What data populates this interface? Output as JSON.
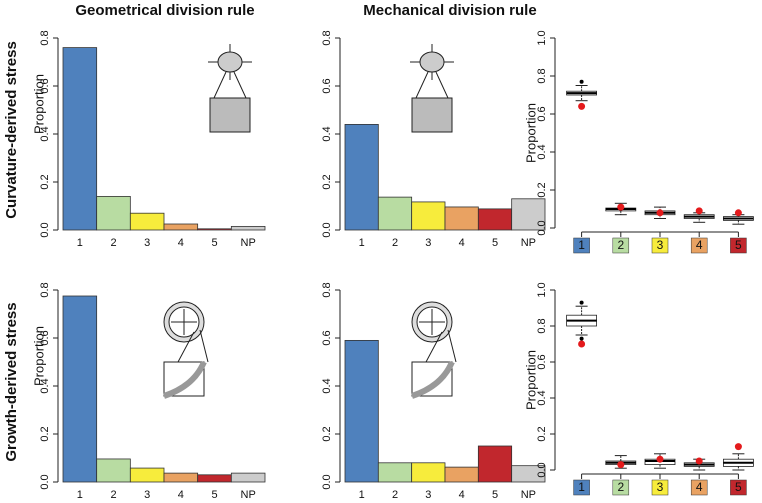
{
  "column_titles": [
    "Geometrical division rule",
    "Mechanical division rule"
  ],
  "row_titles": [
    "Curvature-derived stress",
    "Growth-derived stress"
  ],
  "chart_data": [
    {
      "type": "bar",
      "ylabel": "Proportion",
      "categories": [
        "1",
        "2",
        "3",
        "4",
        "5",
        "NP"
      ],
      "values": [
        0.76,
        0.14,
        0.07,
        0.025,
        0.005,
        0.015
      ],
      "colors": [
        "#4f81bd",
        "#b8dca2",
        "#f7ec3c",
        "#e9a262",
        "#c1272d",
        "#cccccc"
      ],
      "ylim": [
        0,
        0.8
      ],
      "yticks": [
        {
          "value": 0,
          "label": "0.0"
        },
        0.2,
        0.4,
        0.6,
        0.8
      ]
    },
    {
      "type": "bar",
      "categories": [
        "1",
        "2",
        "3",
        "4",
        "5",
        "NP"
      ],
      "values": [
        0.44,
        0.137,
        0.117,
        0.096,
        0.088,
        0.13
      ],
      "colors": [
        "#4f81bd",
        "#b8dca2",
        "#f7ec3c",
        "#e9a262",
        "#c1272d",
        "#cccccc"
      ],
      "ylim": [
        0,
        0.8
      ],
      "yticks": [
        {
          "value": 0,
          "label": "0.0"
        },
        0.2,
        0.4,
        0.6,
        0.8
      ]
    },
    {
      "type": "box",
      "ylabel": "Proportion",
      "categories": [
        "1",
        "2",
        "3",
        "4",
        "5"
      ],
      "colors": [
        "#4f81bd",
        "#b8dca2",
        "#f7ec3c",
        "#e9a262",
        "#c1272d"
      ],
      "point_color": "#e41a1c",
      "boxes": [
        {
          "whislo": 0.67,
          "q1": 0.7,
          "median": 0.71,
          "q3": 0.72,
          "whishi": 0.75,
          "fliers": [
            0.77
          ],
          "point": 0.64
        },
        {
          "whislo": 0.07,
          "q1": 0.09,
          "median": 0.1,
          "q3": 0.105,
          "whishi": 0.13,
          "fliers": [],
          "point": 0.11
        },
        {
          "whislo": 0.05,
          "q1": 0.07,
          "median": 0.08,
          "q3": 0.09,
          "whishi": 0.11,
          "fliers": [],
          "point": 0.08
        },
        {
          "whislo": 0.03,
          "q1": 0.05,
          "median": 0.06,
          "q3": 0.07,
          "whishi": 0.08,
          "fliers": [],
          "point": 0.09
        },
        {
          "whislo": 0.02,
          "q1": 0.04,
          "median": 0.05,
          "q3": 0.06,
          "whishi": 0.07,
          "fliers": [],
          "point": 0.08
        }
      ],
      "ylim": [
        0,
        1
      ],
      "yticks": [
        {
          "value": 0,
          "label": "0.0"
        },
        0.2,
        0.4,
        0.6,
        0.8,
        {
          "value": 1,
          "label": "1.0"
        }
      ]
    },
    {
      "type": "bar",
      "ylabel": "Proportion",
      "categories": [
        "1",
        "2",
        "3",
        "4",
        "5",
        "NP"
      ],
      "values": [
        0.775,
        0.096,
        0.058,
        0.037,
        0.03,
        0.037
      ],
      "colors": [
        "#4f81bd",
        "#b8dca2",
        "#f7ec3c",
        "#e9a262",
        "#c1272d",
        "#cccccc"
      ],
      "ylim": [
        0,
        0.8
      ],
      "yticks": [
        {
          "value": 0,
          "label": "0.0"
        },
        0.2,
        0.4,
        0.6,
        0.8
      ]
    },
    {
      "type": "bar",
      "categories": [
        "1",
        "2",
        "3",
        "4",
        "5",
        "NP"
      ],
      "values": [
        0.59,
        0.08,
        0.08,
        0.062,
        0.15,
        0.068
      ],
      "colors": [
        "#4f81bd",
        "#b8dca2",
        "#f7ec3c",
        "#e9a262",
        "#c1272d",
        "#cccccc"
      ],
      "ylim": [
        0,
        0.8
      ],
      "yticks": [
        {
          "value": 0,
          "label": "0.0"
        },
        0.2,
        0.4,
        0.6,
        0.8
      ]
    },
    {
      "type": "box",
      "ylabel": "Proportion",
      "categories": [
        "1",
        "2",
        "3",
        "4",
        "5"
      ],
      "colors": [
        "#4f81bd",
        "#b8dca2",
        "#f7ec3c",
        "#e9a262",
        "#c1272d"
      ],
      "point_color": "#e41a1c",
      "boxes": [
        {
          "whislo": 0.75,
          "q1": 0.8,
          "median": 0.83,
          "q3": 0.86,
          "whishi": 0.91,
          "fliers": [
            0.93,
            0.73
          ],
          "point": 0.7
        },
        {
          "whislo": 0.01,
          "q1": 0.03,
          "median": 0.04,
          "q3": 0.05,
          "whishi": 0.08,
          "fliers": [],
          "point": 0.03
        },
        {
          "whislo": 0.01,
          "q1": 0.03,
          "median": 0.05,
          "q3": 0.06,
          "whishi": 0.09,
          "fliers": [],
          "point": 0.06
        },
        {
          "whislo": 0.0,
          "q1": 0.02,
          "median": 0.03,
          "q3": 0.04,
          "whishi": 0.06,
          "fliers": [],
          "point": 0.05
        },
        {
          "whislo": 0.0,
          "q1": 0.02,
          "median": 0.04,
          "q3": 0.06,
          "whishi": 0.09,
          "fliers": [],
          "point": 0.13
        }
      ],
      "ylim": [
        0,
        1
      ],
      "yticks": [
        {
          "value": 0,
          "label": "0.0"
        },
        0.2,
        0.4,
        0.6,
        0.8,
        {
          "value": 1,
          "label": "1.0"
        }
      ]
    }
  ]
}
